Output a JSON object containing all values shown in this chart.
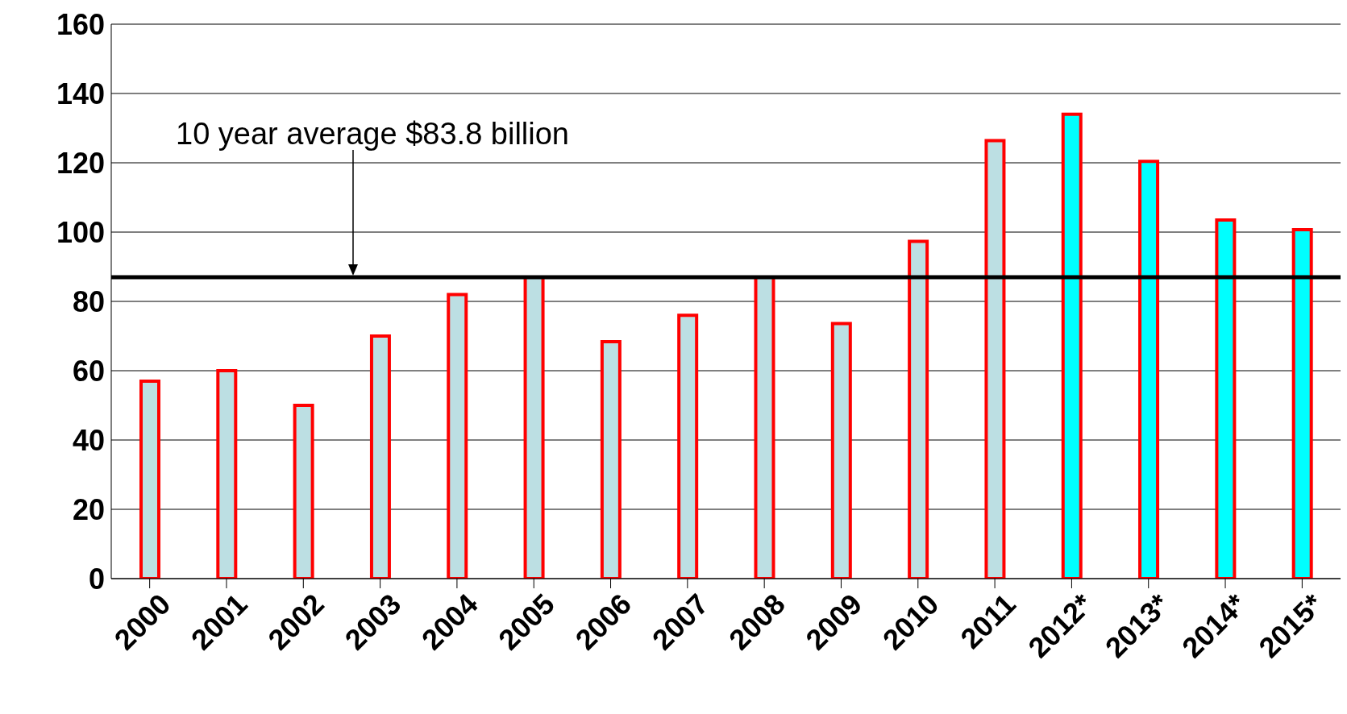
{
  "chart_data": {
    "type": "bar",
    "categories": [
      "2000",
      "2001",
      "2002",
      "2003",
      "2004",
      "2005",
      "2006",
      "2007",
      "2008",
      "2009",
      "2010",
      "2011",
      "2012*",
      "2013*",
      "2014*",
      "2015*"
    ],
    "values": [
      57,
      60,
      50,
      70,
      82,
      87,
      68.4,
      76,
      87,
      73.6,
      97.3,
      126.4,
      134,
      120.4,
      103.5,
      100.7
    ],
    "colors": [
      "#bcdfe3",
      "#bcdfe3",
      "#bcdfe3",
      "#bcdfe3",
      "#bcdfe3",
      "#bcdfe3",
      "#bcdfe3",
      "#bcdfe3",
      "#bcdfe3",
      "#bcdfe3",
      "#bcdfe3",
      "#bcdfe3",
      "#00ffff",
      "#00ffff",
      "#00ffff",
      "#00ffff"
    ],
    "ylim": [
      0,
      160
    ],
    "yticks": [
      0,
      20,
      40,
      60,
      80,
      100,
      120,
      140,
      160
    ],
    "grid": "y",
    "ref_lines": [
      {
        "axis": "y",
        "value": 87,
        "label": "10 year average $83.8 billion",
        "color": "#000000"
      }
    ]
  }
}
